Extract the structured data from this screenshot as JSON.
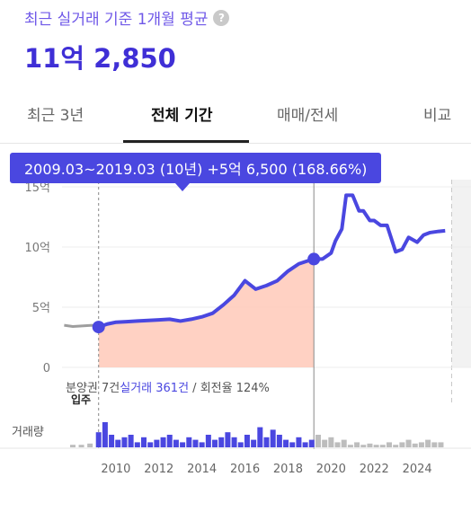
{
  "header": {
    "subtitle": "최근 실거래 기준 1개월 평균",
    "help_icon": "?",
    "price": "11억 2,850"
  },
  "tabs": [
    {
      "label": "최근 3년",
      "active": false
    },
    {
      "label": "전체 기간",
      "active": true
    },
    {
      "label": "매매/전세",
      "active": false
    },
    {
      "label": "비교",
      "active": false
    }
  ],
  "tooltip": {
    "text": "2009.03~2019.03 (10년)   +5억 6,500 (168.66%)"
  },
  "colors": {
    "accent": "#4a47e0",
    "title": "#3f2fd6",
    "fill": "#ffc9b8",
    "gray": "#9e9e9e"
  },
  "stats": {
    "prefix": "분양권 7건",
    "middle": "실거래 361건",
    "suffix": " / 회전율 124%"
  },
  "marker_label": "입주",
  "volume_label": "거래량",
  "chart_data": {
    "type": "line",
    "title": "",
    "xlabel": "",
    "ylabel": "",
    "y_ticks": [
      {
        "value": 15,
        "label": "15억"
      },
      {
        "value": 10,
        "label": "10억"
      },
      {
        "value": 5,
        "label": "5억"
      },
      {
        "value": 0,
        "label": "0"
      }
    ],
    "ylim": [
      0,
      15
    ],
    "x_ticks": [
      "2010",
      "2012",
      "2014",
      "2016",
      "2018",
      "2020",
      "2022",
      "2024"
    ],
    "xlim": [
      2007.5,
      2026.5
    ],
    "selection": {
      "start": 2009.2,
      "end": 2019.2,
      "start_value": 3.35,
      "end_value": 9.0
    },
    "series": [
      {
        "x": [
          2007.6,
          2008.0,
          2008.5,
          2008.9,
          2009.2
        ],
        "values": [
          3.5,
          3.4,
          3.45,
          3.5,
          3.35
        ]
      },
      {
        "x": [
          2009.2,
          2009.6,
          2010.0,
          2010.5,
          2011.0,
          2011.5,
          2012.0,
          2012.5,
          2013.0,
          2013.5,
          2014.0,
          2014.5,
          2015.0,
          2015.5,
          2016.0,
          2016.5,
          2017.0,
          2017.5,
          2018.0,
          2018.5,
          2019.0,
          2019.2,
          2019.6,
          2020.0,
          2020.2,
          2020.5,
          2020.7,
          2021.0,
          2021.3,
          2021.5,
          2021.8,
          2022.0,
          2022.3,
          2022.6,
          2023.0,
          2023.3,
          2023.6,
          2024.0,
          2024.3,
          2024.6,
          2025.0,
          2025.3
        ],
        "values": [
          3.35,
          3.6,
          3.75,
          3.8,
          3.85,
          3.9,
          3.95,
          4.0,
          3.85,
          4.0,
          4.2,
          4.5,
          5.2,
          6.0,
          7.2,
          6.5,
          6.8,
          7.2,
          8.0,
          8.6,
          8.9,
          9.0,
          9.0,
          9.5,
          10.5,
          11.5,
          14.3,
          14.3,
          13.0,
          13.0,
          12.2,
          12.2,
          11.8,
          11.8,
          9.6,
          9.8,
          10.8,
          10.4,
          11.0,
          11.2,
          11.3,
          11.35
        ]
      }
    ],
    "volume": {
      "x": [
        2008.0,
        2008.4,
        2008.8,
        2009.2,
        2009.5,
        2009.8,
        2010.1,
        2010.4,
        2010.7,
        2011.0,
        2011.3,
        2011.6,
        2011.9,
        2012.2,
        2012.5,
        2012.8,
        2013.1,
        2013.4,
        2013.7,
        2014.0,
        2014.3,
        2014.6,
        2014.9,
        2015.2,
        2015.5,
        2015.8,
        2016.1,
        2016.4,
        2016.7,
        2017.0,
        2017.3,
        2017.6,
        2017.9,
        2018.2,
        2018.5,
        2018.8,
        2019.1,
        2019.4,
        2019.7,
        2020.0,
        2020.3,
        2020.6,
        2020.9,
        2021.2,
        2021.5,
        2021.8,
        2022.1,
        2022.4,
        2022.7,
        2023.0,
        2023.3,
        2023.6,
        2023.9,
        2024.2,
        2024.5,
        2024.8,
        2025.1
      ],
      "values": [
        1,
        1,
        1.5,
        6,
        10,
        5,
        3,
        4,
        5,
        2,
        4,
        2,
        3,
        4,
        5,
        3,
        2,
        4,
        3,
        2,
        5,
        3,
        4,
        6,
        4,
        2,
        5,
        3,
        8,
        4,
        7,
        5,
        3,
        2,
        4,
        2,
        3,
        5,
        3,
        4,
        2,
        3,
        1,
        2,
        1,
        1.5,
        1,
        1,
        2,
        1,
        2,
        3,
        1.5,
        2,
        3,
        2,
        2
      ]
    }
  }
}
